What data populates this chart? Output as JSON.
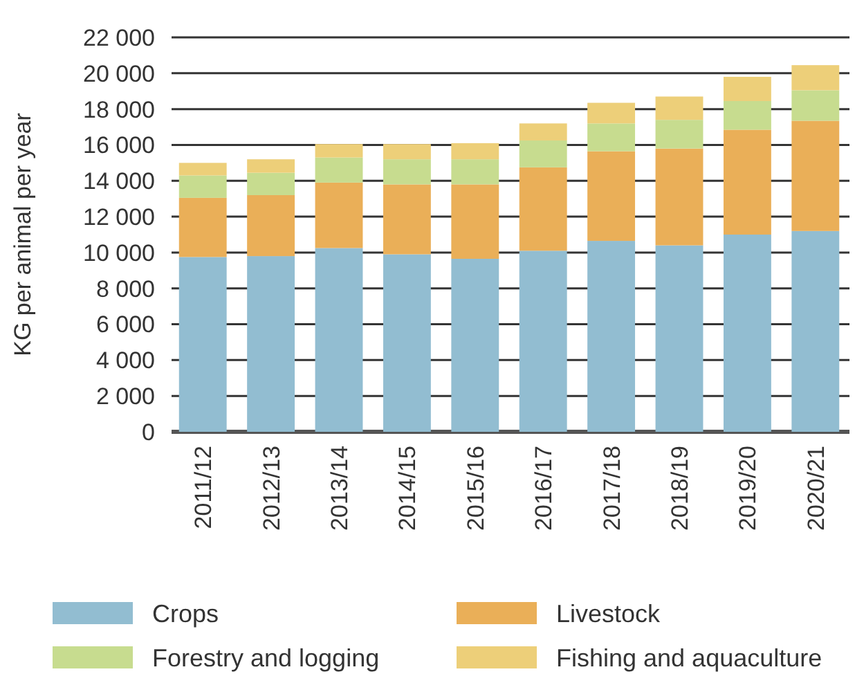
{
  "chart_data": {
    "type": "bar",
    "stacked": true,
    "ylabel": "KG per animal per year",
    "categories": [
      "2011/12",
      "2012/13",
      "2013/14",
      "2014/15",
      "2015/16",
      "2016/17",
      "2017/18",
      "2018/19",
      "2019/20",
      "2020/21"
    ],
    "series": [
      {
        "name": "Crops",
        "color": "#92bdd1",
        "values": [
          9750,
          9800,
          10250,
          9900,
          9650,
          10100,
          10650,
          10400,
          11000,
          11200
        ]
      },
      {
        "name": "Livestock",
        "color": "#eaaf58",
        "values": [
          3300,
          3400,
          3650,
          3900,
          4150,
          4650,
          5000,
          5400,
          5850,
          6150
        ]
      },
      {
        "name": "Forestry and logging",
        "color": "#c7dc8f",
        "values": [
          1250,
          1250,
          1400,
          1400,
          1400,
          1500,
          1550,
          1600,
          1600,
          1700
        ]
      },
      {
        "name": "Fishing and aquaculture",
        "color": "#edcf79",
        "values": [
          700,
          750,
          750,
          850,
          900,
          950,
          1150,
          1300,
          1350,
          1400
        ]
      }
    ],
    "ylim": [
      0,
      22000
    ],
    "yticks": [
      0,
      {
        "value": 2000,
        "label": "2 000"
      },
      {
        "value": 4000,
        "label": "4 000"
      },
      {
        "value": 6000,
        "label": "6 000"
      },
      {
        "value": 8000,
        "label": "8 000"
      },
      {
        "value": 10000,
        "label": "10 000"
      },
      {
        "value": 12000,
        "label": "12 000"
      },
      {
        "value": 14000,
        "label": "14 000"
      },
      {
        "value": 16000,
        "label": "16 000"
      },
      {
        "value": 18000,
        "label": "18 000"
      },
      {
        "value": 20000,
        "label": "20 000"
      },
      {
        "value": 22000,
        "label": "22 000"
      }
    ],
    "grid": "y",
    "legend": "bottom"
  }
}
